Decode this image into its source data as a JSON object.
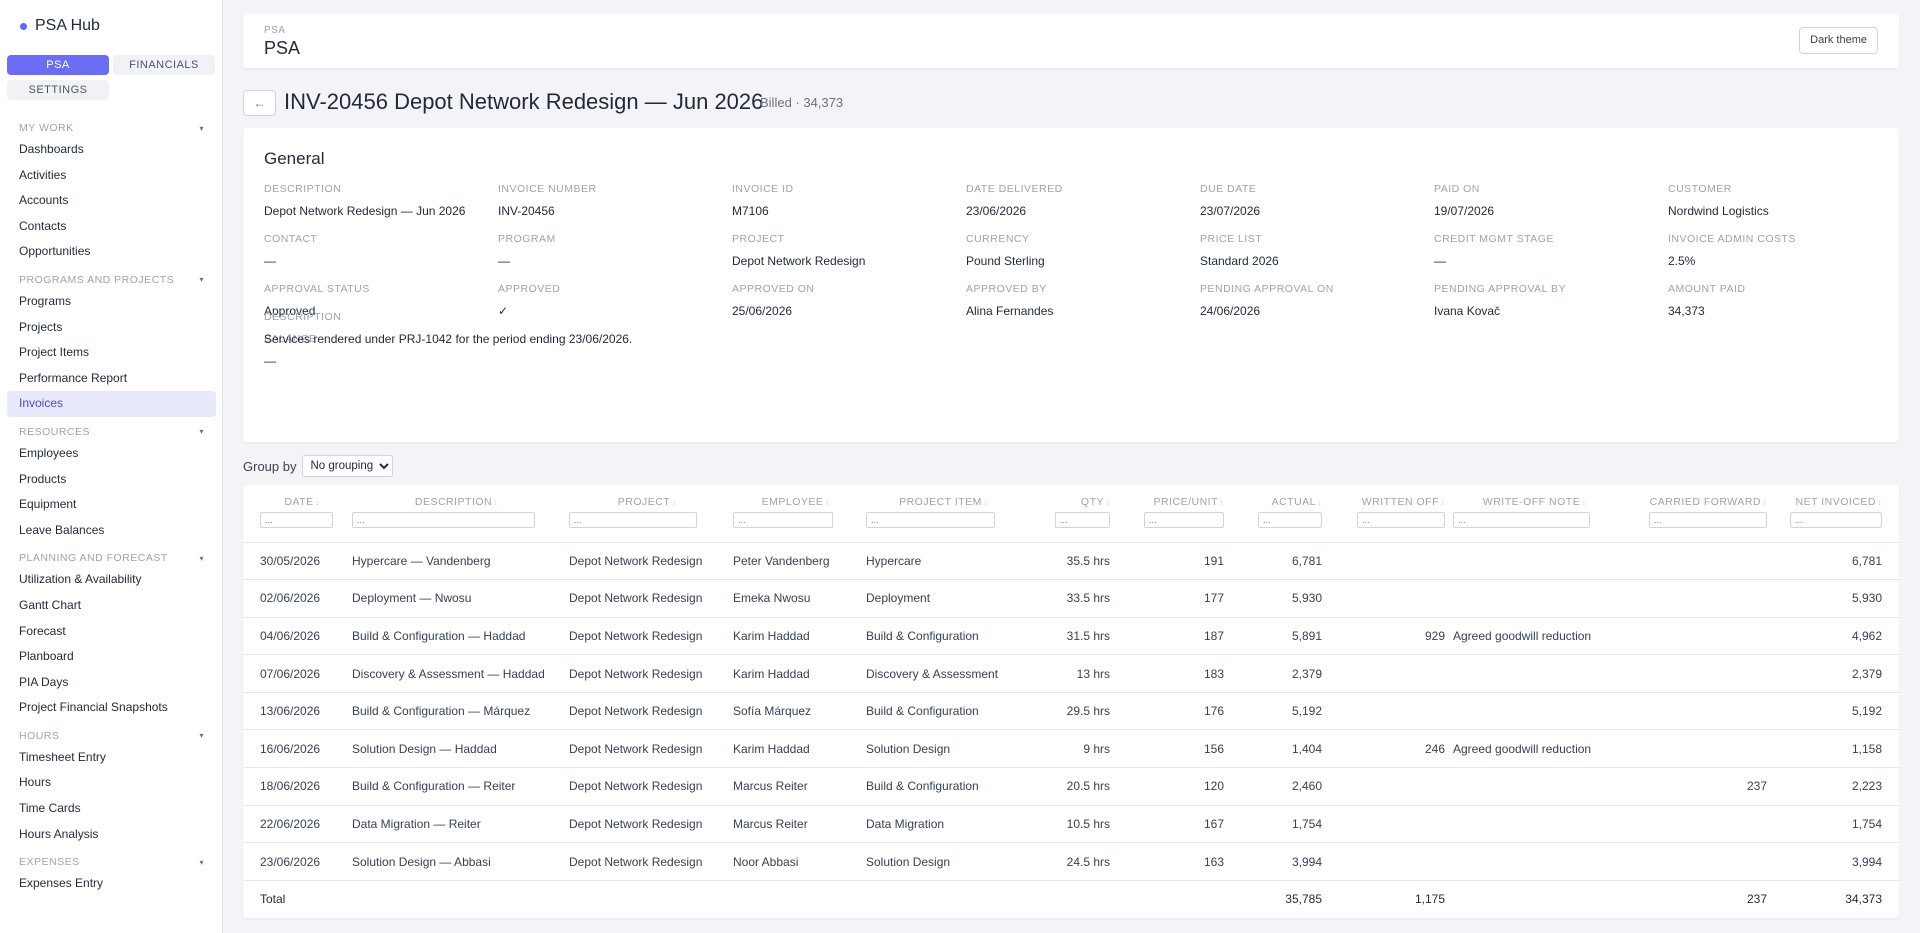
{
  "sidebar": {
    "brand": "PSA Hub",
    "tabs": [
      {
        "label": "PSA",
        "active": true
      },
      {
        "label": "FINANCIALS",
        "active": false
      },
      {
        "label": "SETTINGS",
        "active": false
      }
    ],
    "sections": [
      {
        "title": "MY WORK",
        "items": [
          "Dashboards",
          "Activities",
          "Accounts",
          "Contacts",
          "Opportunities"
        ]
      },
      {
        "title": "PROGRAMS AND PROJECTS",
        "items": [
          "Programs",
          "Projects",
          "Project Items",
          "Performance Report",
          "Invoices"
        ]
      },
      {
        "title": "RESOURCES",
        "items": [
          "Employees",
          "Products",
          "Equipment",
          "Leave Balances"
        ]
      },
      {
        "title": "PLANNING AND FORECAST",
        "items": [
          "Utilization & Availability",
          "Gantt Chart",
          "Forecast",
          "Planboard",
          "PIA Days",
          "Project Financial Snapshots"
        ]
      },
      {
        "title": "HOURS",
        "items": [
          "Timesheet Entry",
          "Hours",
          "Time Cards",
          "Hours Analysis"
        ]
      },
      {
        "title": "EXPENSES",
        "items": [
          "Expenses Entry"
        ]
      }
    ],
    "active_item": "Invoices",
    "chevron": "▾"
  },
  "header": {
    "small": "PSA",
    "title": "PSA",
    "theme_button": "Dark theme"
  },
  "page": {
    "back": "←",
    "title": "INV-20456 Depot Network Redesign — Jun 2026",
    "status": "Billed · 34,373"
  },
  "general": {
    "title": "General",
    "fields": [
      {
        "label": "DESCRIPTION",
        "value": "Depot Network Redesign — Jun 2026"
      },
      {
        "label": "INVOICE NUMBER",
        "value": "INV-20456"
      },
      {
        "label": "INVOICE ID",
        "value": "M7106"
      },
      {
        "label": "DATE DELIVERED",
        "value": "23/06/2026"
      },
      {
        "label": "DUE DATE",
        "value": "23/07/2026"
      },
      {
        "label": "PAID ON",
        "value": "19/07/2026"
      },
      {
        "label": "CUSTOMER",
        "value": "Nordwind Logistics"
      },
      {
        "label": "CONTACT",
        "value": "—"
      },
      {
        "label": "PROGRAM",
        "value": "—"
      },
      {
        "label": "PROJECT",
        "value": "Depot Network Redesign"
      },
      {
        "label": "CURRENCY",
        "value": "Pound Sterling"
      },
      {
        "label": "PRICE LIST",
        "value": "Standard 2026"
      },
      {
        "label": "CREDIT MGMT STAGE",
        "value": "—"
      },
      {
        "label": "INVOICE ADMIN COSTS",
        "value": "2.5%"
      },
      {
        "label": "APPROVAL STATUS",
        "value": "Approved"
      },
      {
        "label": "APPROVED",
        "value": "✓"
      },
      {
        "label": "APPROVED ON",
        "value": "25/06/2026"
      },
      {
        "label": "APPROVED BY",
        "value": "Alina Fernandes"
      },
      {
        "label": "PENDING APPROVAL ON",
        "value": "24/06/2026"
      },
      {
        "label": "PENDING APPROVAL BY",
        "value": "Ivana Kovač"
      },
      {
        "label": "AMOUNT PAID",
        "value": "34,373"
      },
      {
        "label": "BALANCE",
        "value": "—"
      }
    ],
    "long_description": {
      "label": "DESCRIPTION",
      "value": "Services rendered under PRJ-1042 for the period ending 23/06/2026."
    }
  },
  "groupby": {
    "label": "Group by",
    "selected": "No grouping"
  },
  "table": {
    "filter_placeholder": "...",
    "sort_glyph": "↕",
    "columns": [
      "DATE",
      "DESCRIPTION",
      "PROJECT",
      "EMPLOYEE",
      "PROJECT ITEM",
      "QTY",
      "PRICE/UNIT",
      "ACTUAL",
      "WRITTEN OFF",
      "WRITE-OFF NOTE",
      "CARRIED FORWARD",
      "NET INVOICED"
    ],
    "rows": [
      [
        "30/05/2026",
        "Hypercare — Vandenberg",
        "Depot Network Redesign",
        "Peter Vandenberg",
        "Hypercare",
        "35.5 hrs",
        "191",
        "6,781",
        "",
        "",
        "",
        "6,781"
      ],
      [
        "02/06/2026",
        "Deployment — Nwosu",
        "Depot Network Redesign",
        "Emeka Nwosu",
        "Deployment",
        "33.5 hrs",
        "177",
        "5,930",
        "",
        "",
        "",
        "5,930"
      ],
      [
        "04/06/2026",
        "Build & Configuration — Haddad",
        "Depot Network Redesign",
        "Karim Haddad",
        "Build & Configuration",
        "31.5 hrs",
        "187",
        "5,891",
        "929",
        "Agreed goodwill reduction",
        "",
        "4,962"
      ],
      [
        "07/06/2026",
        "Discovery & Assessment — Haddad",
        "Depot Network Redesign",
        "Karim Haddad",
        "Discovery & Assessment",
        "13 hrs",
        "183",
        "2,379",
        "",
        "",
        "",
        "2,379"
      ],
      [
        "13/06/2026",
        "Build & Configuration — Márquez",
        "Depot Network Redesign",
        "Sofía Márquez",
        "Build & Configuration",
        "29.5 hrs",
        "176",
        "5,192",
        "",
        "",
        "",
        "5,192"
      ],
      [
        "16/06/2026",
        "Solution Design — Haddad",
        "Depot Network Redesign",
        "Karim Haddad",
        "Solution Design",
        "9 hrs",
        "156",
        "1,404",
        "246",
        "Agreed goodwill reduction",
        "",
        "1,158"
      ],
      [
        "18/06/2026",
        "Build & Configuration — Reiter",
        "Depot Network Redesign",
        "Marcus Reiter",
        "Build & Configuration",
        "20.5 hrs",
        "120",
        "2,460",
        "",
        "",
        "237",
        "2,223"
      ],
      [
        "22/06/2026",
        "Data Migration — Reiter",
        "Depot Network Redesign",
        "Marcus Reiter",
        "Data Migration",
        "10.5 hrs",
        "167",
        "1,754",
        "",
        "",
        "",
        "1,754"
      ],
      [
        "23/06/2026",
        "Solution Design — Abbasi",
        "Depot Network Redesign",
        "Noor Abbasi",
        "Solution Design",
        "24.5 hrs",
        "163",
        "3,994",
        "",
        "",
        "",
        "3,994"
      ]
    ],
    "total": [
      "Total",
      "",
      "",
      "",
      "",
      "",
      "",
      "35,785",
      "1,175",
      "",
      "237",
      "34,373"
    ]
  }
}
